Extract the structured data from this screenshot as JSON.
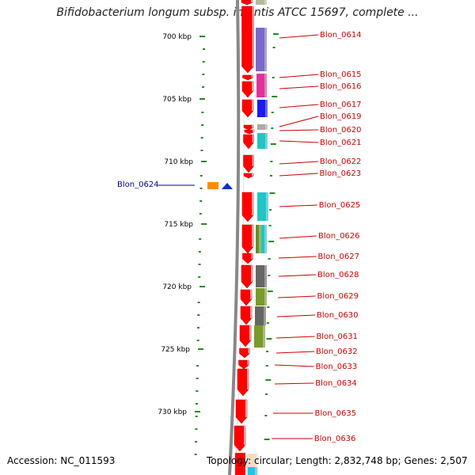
{
  "title": "Bifidobacterium longum subsp. infantis ATCC 15697, complete ...",
  "footer": {
    "accession": "Accession: NC_011593",
    "topology": "Topology: circular; Length: 2,832,748 bp; Genes: 2,507"
  },
  "scale_labels": [
    "700 kbp",
    "705 kbp",
    "710 kbp",
    "715 kbp",
    "720 kbp",
    "725 kbp",
    "730 kbp"
  ],
  "right_genes": [
    {
      "label": "Blon_0614",
      "color": "#7b68c9"
    },
    {
      "label": "Blon_0615",
      "color": "#e0339a"
    },
    {
      "label": "Blon_0616",
      "color": "#e0339a"
    },
    {
      "label": "Blon_0617",
      "color": "#1a1aee"
    },
    {
      "label": "Blon_0619",
      "color": "#aaaaaa"
    },
    {
      "label": "Blon_0620",
      "color": "#aaaaaa"
    },
    {
      "label": "Blon_0621",
      "color": "#22c4c4"
    },
    {
      "label": "Blon_0622",
      "color": ""
    },
    {
      "label": "Blon_0623",
      "color": ""
    },
    {
      "label": "Blon_0625",
      "color": "#22c4c4"
    },
    {
      "label": "Blon_0626",
      "color": "#6b8e23"
    },
    {
      "label": "Blon_0627",
      "color": ""
    },
    {
      "label": "Blon_0628",
      "color": "#666666"
    },
    {
      "label": "Blon_0629",
      "color": "#7a9a2a"
    },
    {
      "label": "Blon_0630",
      "color": "#666666"
    },
    {
      "label": "Blon_0631",
      "color": "#7a9a2a"
    },
    {
      "label": "Blon_0632",
      "color": ""
    },
    {
      "label": "Blon_0633",
      "color": ""
    },
    {
      "label": "Blon_0634",
      "color": ""
    },
    {
      "label": "Blon_0635",
      "color": ""
    },
    {
      "label": "Blon_0636",
      "color": ""
    }
  ],
  "left_genes": [
    {
      "label": "Blon_0624",
      "color": "#ff8c00",
      "arrow_color": "#0033cc"
    }
  ],
  "colors": {
    "strand_arrow": "#ff0000",
    "scale_tick": "#228b22",
    "backbone": "#888888"
  }
}
